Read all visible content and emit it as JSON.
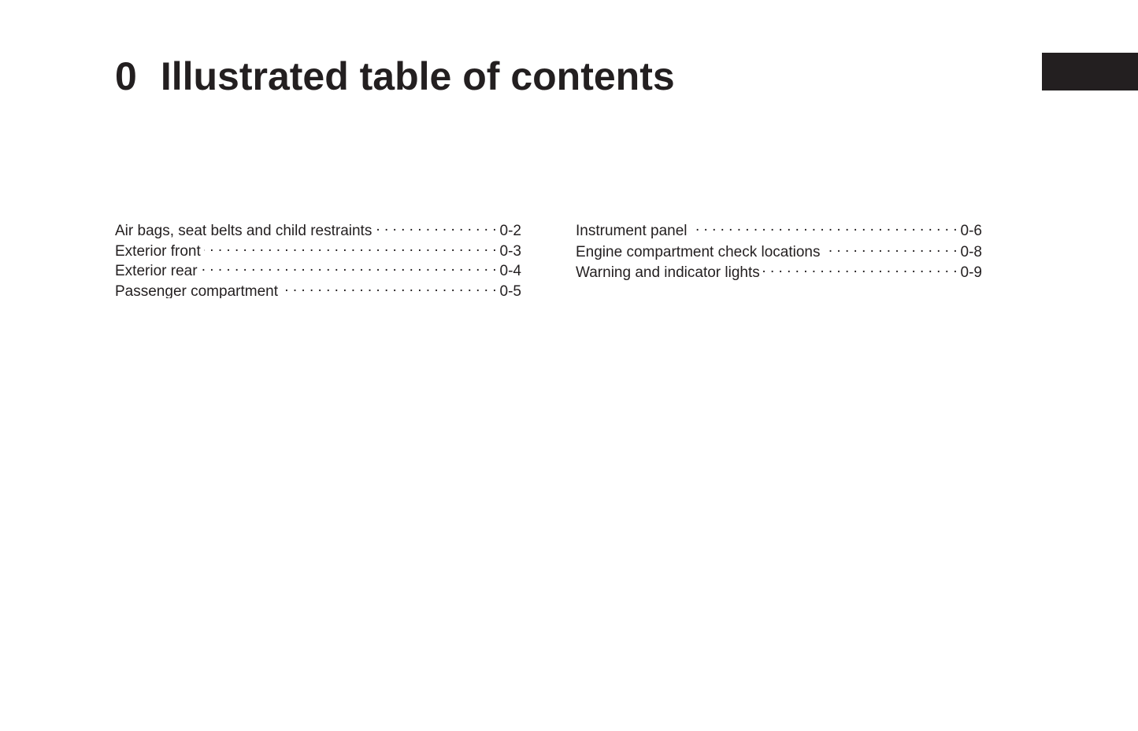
{
  "title": {
    "number": "0",
    "text": "Illustrated table of contents"
  },
  "toc_left": [
    {
      "label": "Air bags, seat belts and child restraints",
      "page": "0-2"
    },
    {
      "label": "Exterior front",
      "page": "0-3"
    },
    {
      "label": "Exterior rear",
      "page": "0-4"
    },
    {
      "label": "Passenger compartment",
      "page": "0-5"
    }
  ],
  "toc_right": [
    {
      "label": "Instrument panel",
      "page": "0-6"
    },
    {
      "label": "Engine compartment check locations",
      "page": "0-8"
    },
    {
      "label": "Warning and indicator lights",
      "page": "0-9"
    }
  ],
  "colors": {
    "text": "#231f20",
    "tab": "#231f20"
  }
}
